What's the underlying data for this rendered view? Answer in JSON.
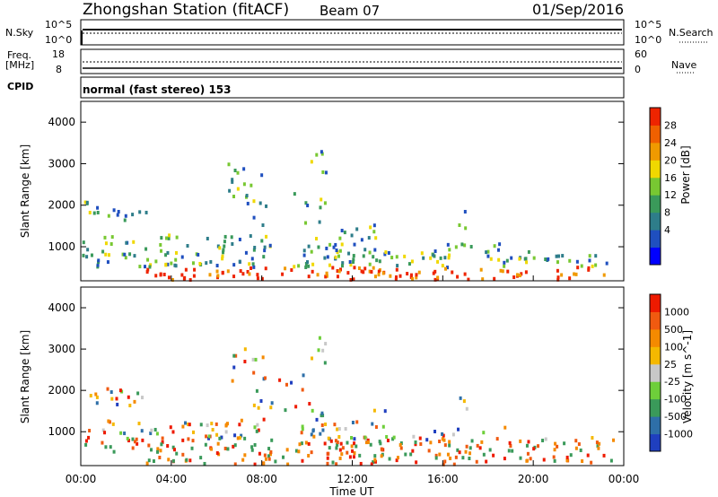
{
  "header": {
    "station": "Zhongshan Station (fitACF)",
    "beam": "Beam 07",
    "date": "01/Sep/2016"
  },
  "top_panels": {
    "nsky_label": "N.Sky",
    "nsky_ticks": [
      "10^5",
      "10^0"
    ],
    "nsearch_label": "N.Search",
    "nsearch_ticks": [
      "10^5",
      "10^0"
    ],
    "freq_label_1": "Freq.",
    "freq_label_2": "[MHz]",
    "freq_ticks": [
      "18",
      "8"
    ],
    "nave_label": "Nave",
    "nave_ticks": [
      "60",
      "0"
    ],
    "cpid_label": "CPID",
    "cpid_text": "normal (fast stereo) 153"
  },
  "chart_data": [
    {
      "type": "heatmap",
      "title": "",
      "ylabel": "Slant Range [km]",
      "xlabel": "",
      "ylim": [
        180,
        4500
      ],
      "y_ticks": [
        "4000",
        "3000",
        "2000",
        "1000"
      ],
      "colorbar": {
        "label": "Power [dB]",
        "ticks": [
          "28",
          "24",
          "20",
          "16",
          "12",
          "8",
          "4"
        ],
        "colors": [
          "#0000ff",
          "#1f4fbf",
          "#2e7d8a",
          "#3a9a5a",
          "#78c832",
          "#f0d800",
          "#f09a00",
          "#f06000",
          "#ee2400"
        ]
      }
    },
    {
      "type": "heatmap",
      "title": "",
      "ylabel": "Slant Range [km]",
      "xlabel": "Time UT",
      "ylim": [
        180,
        4500
      ],
      "y_ticks": [
        "4000",
        "3000",
        "2000",
        "1000"
      ],
      "x_ticks": [
        "00:00",
        "04:00",
        "08:00",
        "12:00",
        "16:00",
        "20:00",
        "00:00"
      ],
      "colorbar": {
        "label": "Velocity [m s^-1]",
        "ticks": [
          "1000",
          "500",
          "100",
          "25",
          "-25",
          "-100",
          "-500",
          "-1000"
        ],
        "colors": [
          "#1f3fbf",
          "#2e6fa8",
          "#3a9a5a",
          "#6ecf3a",
          "#c8c8c8",
          "#f5b800",
          "#f58a00",
          "#f05a10",
          "#ee1a00"
        ]
      }
    }
  ]
}
